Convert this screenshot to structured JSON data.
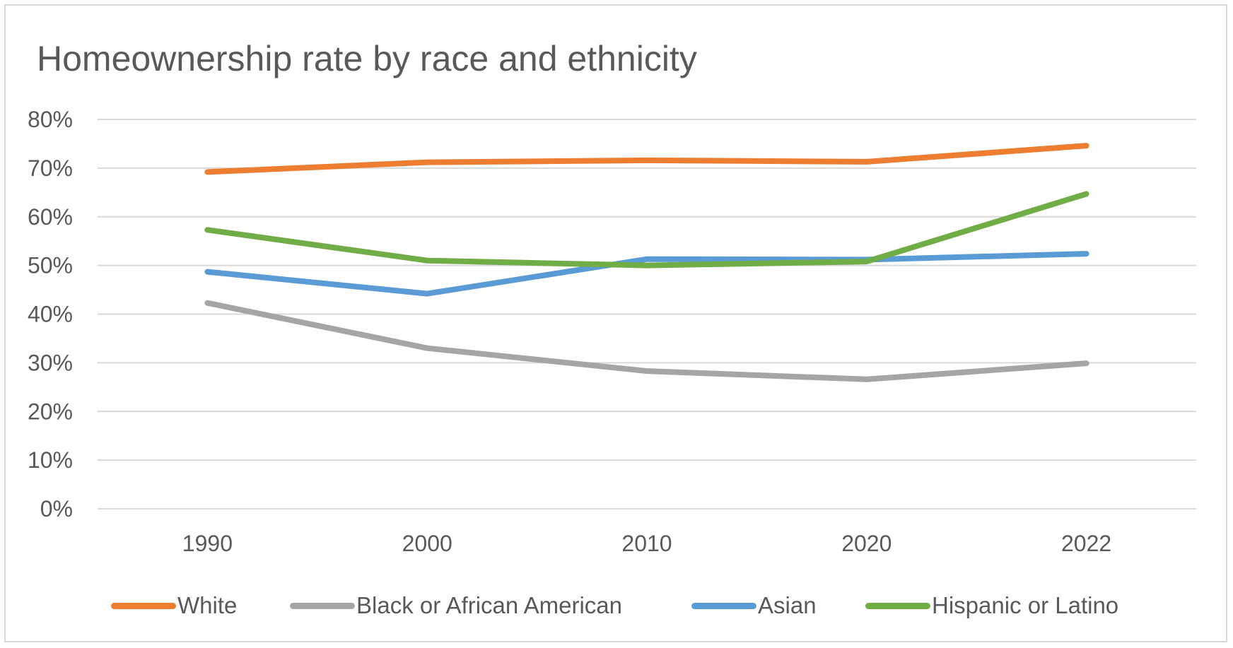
{
  "chart_data": {
    "type": "line",
    "title": "Homeownership rate by race and ethnicity",
    "xlabel": "",
    "ylabel": "",
    "categories": [
      "1990",
      "2000",
      "2010",
      "2020",
      "2022"
    ],
    "y_ticks": [
      "0%",
      "10%",
      "20%",
      "30%",
      "40%",
      "50%",
      "60%",
      "70%",
      "80%"
    ],
    "ylim": [
      0,
      80
    ],
    "y_unit": "%",
    "grid": true,
    "legend_position": "bottom",
    "series": [
      {
        "name": "White",
        "color": "#ED7D31",
        "values": [
          69.2,
          71.2,
          71.6,
          71.3,
          74.6
        ]
      },
      {
        "name": "Black or African American",
        "color": "#A5A5A5",
        "values": [
          42.3,
          33.0,
          28.3,
          26.6,
          29.9
        ]
      },
      {
        "name": "Asian",
        "color": "#5B9BD5",
        "values": [
          48.7,
          44.2,
          51.3,
          51.2,
          52.4
        ]
      },
      {
        "name": "Hispanic or Latino",
        "color": "#70AD47",
        "values": [
          57.3,
          51.0,
          50.0,
          50.8,
          64.7
        ]
      }
    ]
  }
}
